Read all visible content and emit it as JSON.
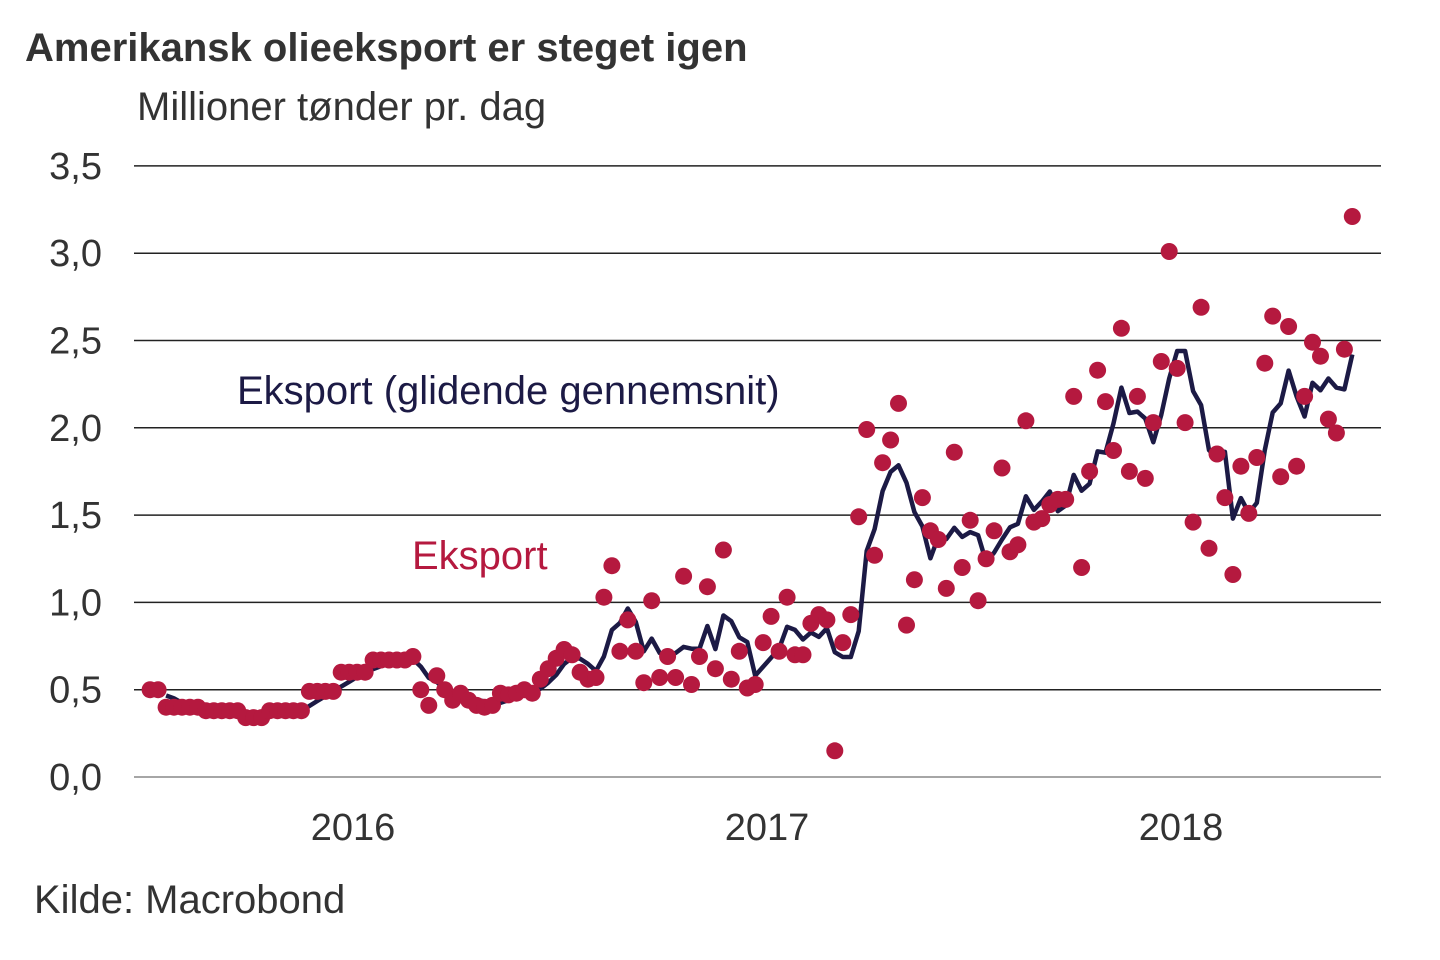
{
  "title": "Amerikansk olieeksport er steget igen",
  "subtitle": "Millioner tønder pr. dag",
  "source": "Kilde: Macrobond",
  "colors": {
    "dots": "#b5193f",
    "line": "#1c1a45",
    "grid": "#222222"
  },
  "chart_data": {
    "type": "scatter",
    "title": "Amerikansk olieeksport er steget igen",
    "ylabel": "Millioner tønder pr. dag",
    "ylim": [
      0,
      3.5
    ],
    "yticks": [
      0,
      0.5,
      1.0,
      1.5,
      2.0,
      2.5,
      3.0,
      3.5
    ],
    "ytick_labels": [
      "0,0",
      "0,5",
      "1,0",
      "1,5",
      "2,0",
      "2,5",
      "3,0",
      "3,5"
    ],
    "xticks": [
      2016,
      2017,
      2018
    ],
    "xtick_labels": [
      "2016",
      "2017",
      "2018"
    ],
    "grid": "horizontal",
    "x_start_year": 2015.51,
    "frequency": "weekly",
    "annotations": {
      "line_label": "Eksport (glidende gennemsnit)",
      "dots_label": "Eksport"
    },
    "series": [
      {
        "name": "Eksport",
        "kind": "dots",
        "values": [
          0.5,
          0.5,
          0.4,
          0.4,
          0.4,
          0.4,
          0.4,
          0.38,
          0.38,
          0.38,
          0.38,
          0.38,
          0.34,
          0.34,
          0.34,
          0.38,
          0.38,
          0.38,
          0.38,
          0.38,
          0.49,
          0.49,
          0.49,
          0.49,
          0.6,
          0.6,
          0.6,
          0.6,
          0.67,
          0.67,
          0.67,
          0.67,
          0.67,
          0.69,
          0.5,
          0.41,
          0.58,
          0.5,
          0.44,
          0.48,
          0.44,
          0.41,
          0.4,
          0.41,
          0.48,
          0.47,
          0.48,
          0.5,
          0.48,
          0.56,
          0.62,
          0.68,
          0.73,
          0.7,
          0.6,
          0.56,
          0.57,
          1.03,
          1.21,
          0.72,
          0.9,
          0.72,
          0.54,
          1.01,
          0.57,
          0.69,
          0.57,
          1.15,
          0.53,
          0.69,
          1.09,
          0.62,
          1.3,
          0.56,
          0.72,
          0.51,
          0.53,
          0.77,
          0.92,
          0.72,
          1.03,
          0.7,
          0.7,
          0.88,
          0.93,
          0.9,
          0.15,
          0.77,
          0.93,
          1.49,
          1.99,
          1.27,
          1.8,
          1.93,
          2.14,
          0.87,
          1.13,
          1.6,
          1.41,
          1.36,
          1.08,
          1.86,
          1.2,
          1.47,
          1.01,
          1.25,
          1.41,
          1.77,
          1.29,
          1.33,
          2.04,
          1.46,
          1.48,
          1.56,
          1.59,
          1.59,
          2.18,
          1.2,
          1.75,
          2.33,
          2.15,
          1.87,
          2.57,
          1.75,
          2.18,
          1.71,
          2.03,
          2.38,
          3.01,
          2.34,
          2.03,
          1.46,
          2.69,
          1.31,
          1.85,
          1.6,
          1.16,
          1.78,
          1.51,
          1.83,
          2.37,
          2.64,
          1.72,
          2.58,
          1.78,
          2.18,
          2.49,
          2.41,
          2.05,
          1.97,
          2.45,
          3.21
        ]
      },
      {
        "name": "Eksport (glidende gennemsnit)",
        "kind": "line",
        "method": "4-week moving average of Eksport"
      }
    ]
  }
}
